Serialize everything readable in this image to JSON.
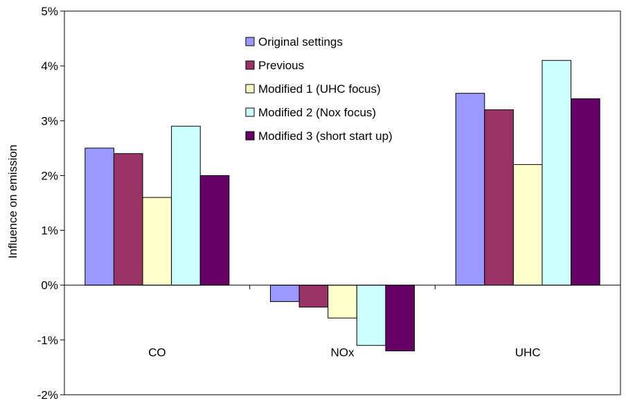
{
  "chart_data": {
    "type": "bar",
    "categories": [
      "CO",
      "NOx",
      "UHC"
    ],
    "series": [
      {
        "name": "Original settings",
        "values": [
          2.5,
          -0.3,
          3.5
        ],
        "color": "#9999ff"
      },
      {
        "name": "Previous",
        "values": [
          2.4,
          -0.4,
          3.2
        ],
        "color": "#993366"
      },
      {
        "name": "Modified 1 (UHC focus)",
        "values": [
          1.6,
          -0.6,
          2.2
        ],
        "color": "#ffffcc"
      },
      {
        "name": "Modified 2 (Nox focus)",
        "values": [
          2.9,
          -1.1,
          4.1
        ],
        "color": "#ccffff"
      },
      {
        "name": "Modified 3 (short start up)",
        "values": [
          2.0,
          -1.2,
          3.4
        ],
        "color": "#660066"
      }
    ],
    "ylabel": "Influence on emission",
    "ylim": [
      -2,
      5
    ],
    "ytick_step": 1,
    "ytick_labels": [
      "-2%",
      "-1%",
      "0%",
      "1%",
      "2%",
      "3%",
      "4%",
      "5%"
    ],
    "grid": false,
    "legend_position": "top-center"
  }
}
